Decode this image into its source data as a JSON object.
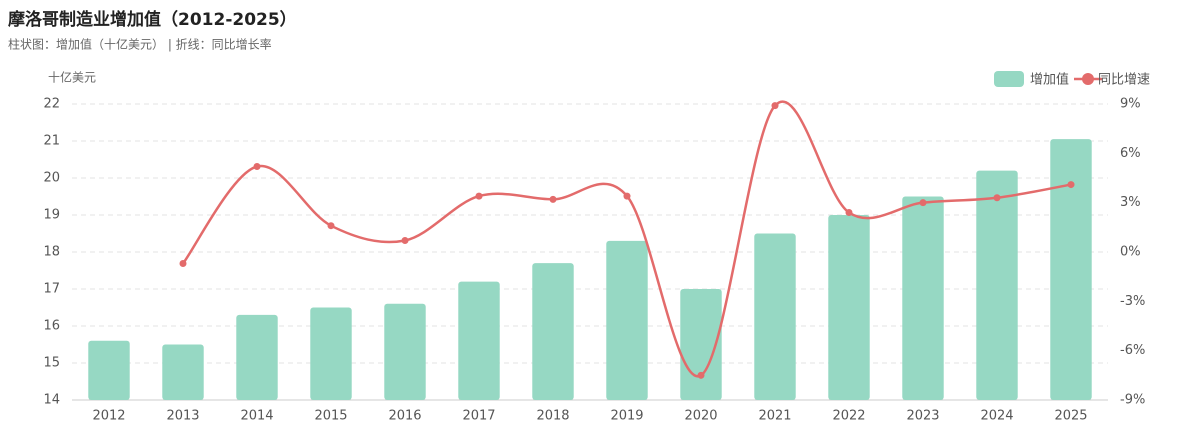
{
  "chart_data": {
    "type": "bar-line",
    "title": "摩洛哥制造业增加值（2012-2025）",
    "subtitle": "柱状图：增加值（十亿美元） | 折线：同比增长率",
    "y_label": "十亿美元",
    "categories": [
      "2012",
      "2013",
      "2014",
      "2015",
      "2016",
      "2017",
      "2018",
      "2019",
      "2020",
      "2021",
      "2022",
      "2023",
      "2024",
      "2025"
    ],
    "series": [
      {
        "name": "增加值",
        "type": "bar",
        "color": "#96d8c3",
        "values": [
          15.6,
          15.5,
          16.3,
          16.5,
          16.6,
          17.2,
          17.7,
          18.3,
          17.0,
          18.5,
          19.0,
          19.5,
          20.2,
          21.05
        ]
      },
      {
        "name": "同比增速",
        "type": "line",
        "axis": "y2",
        "color": "#e36b6b",
        "values": [
          null,
          -0.7,
          5.2,
          1.6,
          0.7,
          3.4,
          3.2,
          3.4,
          -7.5,
          8.9,
          2.4,
          3.0,
          3.3,
          4.1
        ]
      }
    ],
    "ylim": [
      14,
      22
    ],
    "yticks": [
      14,
      15,
      16,
      17,
      18,
      19,
      20,
      21,
      22
    ],
    "y2lim": [
      -9,
      9
    ],
    "y2ticks": [
      {
        "value": -9,
        "label": "-9%"
      },
      {
        "value": -6,
        "label": "-6%"
      },
      {
        "value": -3,
        "label": "-3%"
      },
      {
        "value": 0,
        "label": "0%"
      },
      {
        "value": 3,
        "label": "3%"
      },
      {
        "value": 6,
        "label": "6%"
      },
      {
        "value": 9,
        "label": "9%"
      }
    ],
    "grid": true,
    "legend": "top-right"
  }
}
